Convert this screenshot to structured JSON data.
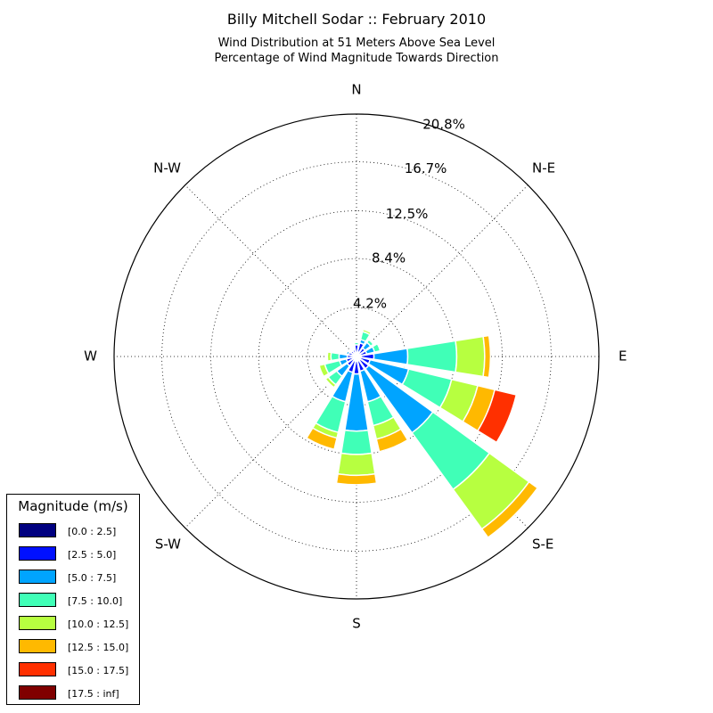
{
  "title": "Billy Mitchell Sodar :: February 2010",
  "subtitle_line1": "Wind Distribution at 51 Meters Above Sea Level",
  "subtitle_line2": "Percentage of Wind Magnitude Towards Direction",
  "legend": {
    "title": "Magnitude (m/s)",
    "items": [
      {
        "label": "[0.0 : 2.5]",
        "color": "#000080"
      },
      {
        "label": "[2.5 : 5.0]",
        "color": "#0010ff"
      },
      {
        "label": "[5.0 : 7.5]",
        "color": "#00a4ff"
      },
      {
        "label": "[7.5 : 10.0]",
        "color": "#40ffb7"
      },
      {
        "label": "[10.0 : 12.5]",
        "color": "#b7ff40"
      },
      {
        "label": "[12.5 : 15.0]",
        "color": "#ffb900"
      },
      {
        "label": "[15.0 : 17.5]",
        "color": "#ff3000"
      },
      {
        "label": "[17.5 : inf]",
        "color": "#800000"
      }
    ]
  },
  "chart_data": {
    "type": "wind-rose",
    "direction_labels": [
      "N",
      "N-E",
      "E",
      "S-E",
      "S",
      "S-W",
      "W",
      "N-W"
    ],
    "radial_tick_labels": [
      "4.2%",
      "8.4%",
      "12.5%",
      "16.7%",
      "20.8%"
    ],
    "radial_ticks": [
      4.2,
      8.4,
      12.5,
      16.7,
      20.8
    ],
    "r_max": 20.8,
    "grid": true,
    "sector_width_deg": 22.5,
    "sectors": [
      {
        "dir": 0,
        "cum": [
          0.3,
          1.0,
          1.0,
          1.2,
          1.2,
          1.2,
          1.2,
          1.2
        ]
      },
      {
        "dir": 22.5,
        "cum": [
          0.4,
          1.2,
          1.5,
          2.2,
          2.4,
          2.4,
          2.4,
          2.4
        ]
      },
      {
        "dir": 45,
        "cum": [
          0.3,
          0.9,
          1.5,
          1.8,
          1.9,
          1.9,
          1.9,
          1.9
        ]
      },
      {
        "dir": 67.5,
        "cum": [
          0.3,
          0.9,
          1.6,
          2.1,
          2.2,
          2.2,
          2.2,
          2.2
        ]
      },
      {
        "dir": 90,
        "cum": [
          0.4,
          1.5,
          4.4,
          8.6,
          11.0,
          11.5,
          11.5,
          11.5
        ]
      },
      {
        "dir": 112.5,
        "cum": [
          0.3,
          1.2,
          4.6,
          8.4,
          10.7,
          12.2,
          14.1,
          14.1
        ]
      },
      {
        "dir": 135,
        "cum": [
          0.4,
          1.3,
          8.1,
          14.1,
          18.3,
          19.2,
          19.2,
          19.2
        ]
      },
      {
        "dir": 157.5,
        "cum": [
          0.4,
          1.3,
          4.0,
          6.1,
          7.3,
          8.4,
          8.4,
          8.4
        ]
      },
      {
        "dir": 180,
        "cum": [
          0.4,
          1.5,
          6.4,
          8.4,
          10.2,
          11.0,
          11.0,
          11.0
        ]
      },
      {
        "dir": 202.5,
        "cum": [
          0.4,
          1.4,
          4.0,
          6.7,
          7.2,
          8.2,
          8.2,
          8.2
        ]
      },
      {
        "dir": 225,
        "cum": [
          0.3,
          1.0,
          2.1,
          3.0,
          3.3,
          3.4,
          3.4,
          3.4
        ]
      },
      {
        "dir": 247.5,
        "cum": [
          0.3,
          0.9,
          1.5,
          2.8,
          3.3,
          3.4,
          3.4,
          3.4
        ]
      },
      {
        "dir": 270,
        "cum": [
          0.3,
          0.8,
          1.5,
          2.2,
          2.5,
          2.5,
          2.5,
          2.5
        ]
      },
      {
        "dir": 292.5,
        "cum": [
          0.3,
          0.7,
          0.9,
          1.0,
          1.0,
          1.0,
          1.0,
          1.0
        ]
      },
      {
        "dir": 315,
        "cum": [
          0.3,
          0.6,
          0.7,
          0.7,
          0.7,
          0.7,
          0.7,
          0.7
        ]
      },
      {
        "dir": 337.5,
        "cum": [
          0.3,
          0.6,
          0.7,
          0.7,
          0.7,
          0.7,
          0.7,
          0.7
        ]
      }
    ]
  }
}
